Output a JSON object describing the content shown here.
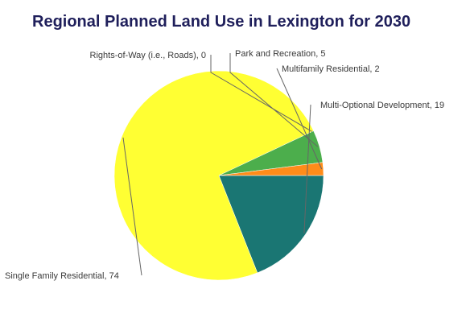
{
  "chart_data": {
    "type": "pie",
    "title": "Regional Planned Land Use in Lexington for 2030",
    "slices": [
      {
        "label": "Multi-Optional Development, 19",
        "value": 19,
        "color": "#1a7673"
      },
      {
        "label": "Single Family Residential, 74",
        "value": 74,
        "color": "#ffff33"
      },
      {
        "label": "Rights-of-Way (i.e., Roads), 0",
        "value": 0,
        "color": "#777777"
      },
      {
        "label": "Park and Recreation, 5",
        "value": 5,
        "color": "#4cae4c"
      },
      {
        "label": "Multifamily Residential, 2",
        "value": 2,
        "color": "#ff8c1a"
      }
    ],
    "start_direction": "3 o'clock",
    "order": "clockwise"
  }
}
